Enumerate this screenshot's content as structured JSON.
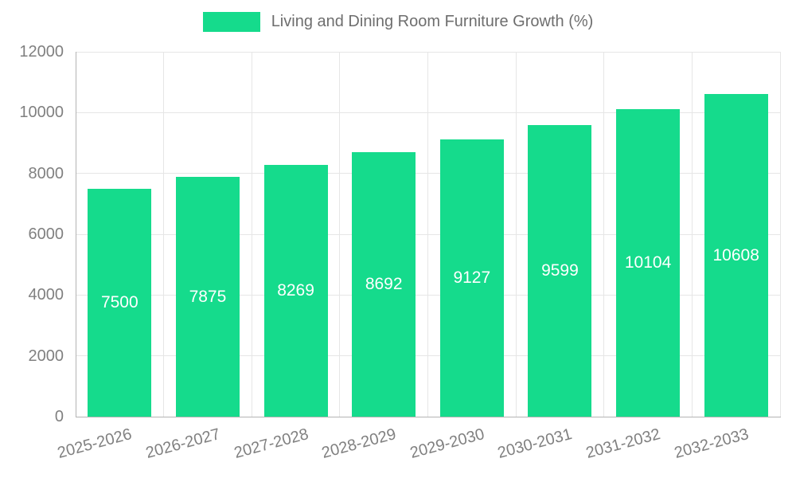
{
  "legend": {
    "label": "Living and Dining Room Furniture Growth (%)"
  },
  "chart_data": {
    "type": "bar",
    "title": "Living and Dining Room Furniture Growth (%)",
    "categories": [
      "2025-2026",
      "2026-2027",
      "2027-2028",
      "2028-2029",
      "2029-2030",
      "2030-2031",
      "2031-2032",
      "2032-2033"
    ],
    "values": [
      7500,
      7875,
      8269,
      8692,
      9127,
      9599,
      10104,
      10608
    ],
    "xlabel": "",
    "ylabel": "",
    "ylim": [
      0,
      12000
    ],
    "yticks": [
      0,
      2000,
      4000,
      6000,
      8000,
      10000,
      12000
    ],
    "bar_color": "#15db8c",
    "value_label_color": "#ffffff",
    "axis_text_color": "#808080",
    "grid": true,
    "legend_position": "top"
  }
}
